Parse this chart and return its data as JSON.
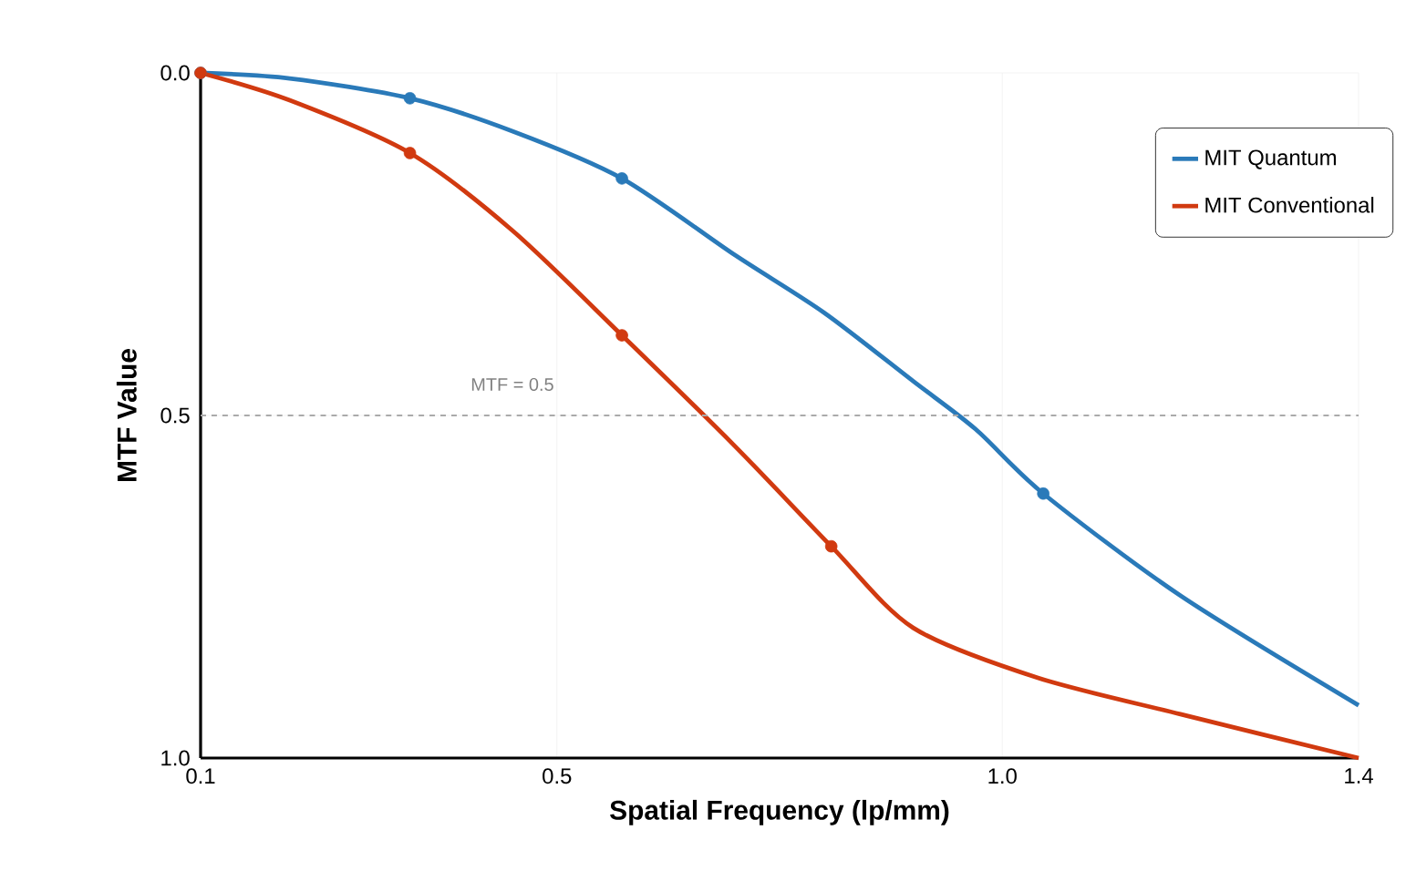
{
  "chart_data": {
    "type": "line",
    "xlabel": "Spatial Frequency (lp/mm)",
    "ylabel": "MTF Value",
    "xlim": [
      0.1,
      1.4
    ],
    "xticks": [
      0.1,
      0.5,
      {
        "value": 1.0,
        "label": "1.0"
      },
      1.4
    ],
    "ylim": [
      1.0,
      0.0
    ],
    "yticks": [
      {
        "value": 0.0,
        "label": "0.0"
      },
      0.5,
      {
        "value": 1.0,
        "label": "1.0"
      }
    ],
    "grid": true,
    "legend": "top right",
    "marker": "none",
    "line_style": "solid",
    "ref_lines": [
      {
        "axis": "y",
        "value": 0.5,
        "label": "MTF = 0.5",
        "color": "#aaaaaa",
        "line_style": "dashed"
      }
    ],
    "series": [
      {
        "name": "MIT Quantum",
        "color": "#2a7ab9",
        "x": [
          0.1,
          0.2,
          0.335,
          0.45,
          0.573,
          0.7,
          0.8,
          0.9,
          0.97,
          1.046,
          1.2,
          1.4
        ],
        "values": [
          0.0,
          0.008,
          0.037,
          0.085,
          0.154,
          0.266,
          0.35,
          0.45,
          0.52,
          0.614,
          0.763,
          0.923
        ]
      },
      {
        "name": "MIT Conventional",
        "color": "#d13a10",
        "x": [
          0.1,
          0.2,
          0.335,
          0.45,
          0.573,
          0.7,
          0.808,
          0.9,
          1.04,
          1.2,
          1.4
        ],
        "values": [
          0.0,
          0.04,
          0.117,
          0.23,
          0.383,
          0.545,
          0.691,
          0.81,
          0.883,
          0.936,
          1.0
        ]
      },
      {
        "type": "scatter",
        "marker": "circle",
        "color": "#2a7ab9",
        "x": [
          0.1,
          0.335,
          0.573,
          1.046
        ],
        "values": [
          0.0,
          0.037,
          0.154,
          0.614
        ]
      },
      {
        "type": "scatter",
        "marker": "circle",
        "color": "#d13a10",
        "x": [
          0.1,
          0.335,
          0.573,
          0.808
        ],
        "values": [
          0.0,
          0.117,
          0.383,
          0.691
        ]
      }
    ]
  }
}
